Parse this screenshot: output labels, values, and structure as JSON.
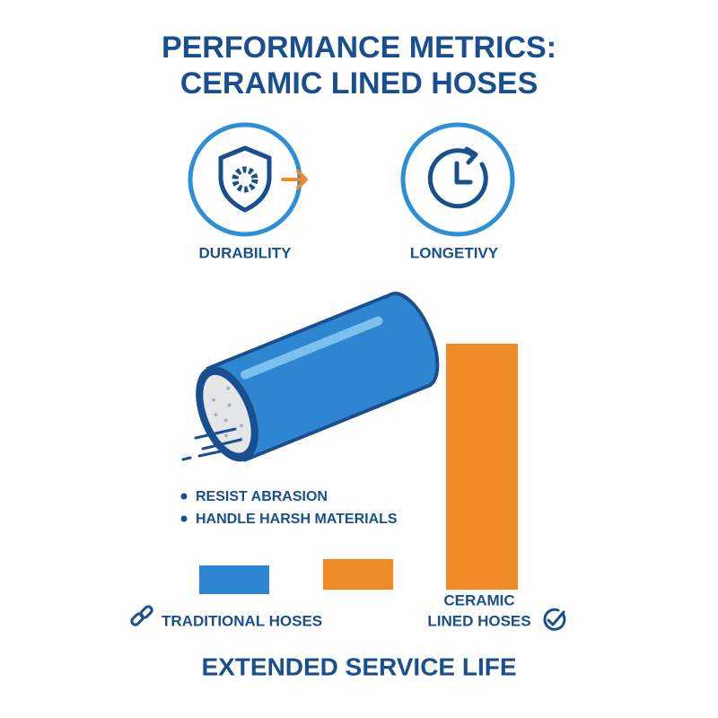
{
  "header": {
    "title_lines": [
      "PERFORMANCE METRICS:",
      "CERAMIC LINED HOSES"
    ]
  },
  "metrics": [
    {
      "label": "DURABILITY"
    },
    {
      "label": "LONGETIVY"
    }
  ],
  "features": [
    "RESIST ABRASION",
    "HANDLE HARSH MATERIALS"
  ],
  "comparison": {
    "traditional_label": "TRADITIONAL HOSES",
    "ceramic_label_lines": [
      "CERAMIC",
      "LINED HOSES"
    ]
  },
  "footer": {
    "title": "EXTENDED SERVICE LIFE"
  }
}
